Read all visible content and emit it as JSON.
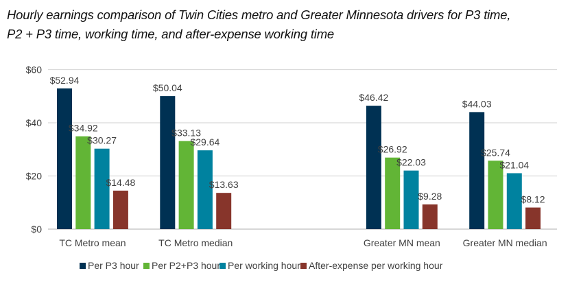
{
  "chart_data": {
    "type": "bar",
    "title_lines": [
      "Hourly earnings comparison of Twin Cities metro and Greater Minnesota drivers for P3 time,",
      "P2 + P3 time, working time, and after-expense working time"
    ],
    "xlabel": "",
    "ylabel": "",
    "ylim": [
      0,
      60
    ],
    "yticks": [
      0,
      20,
      40,
      60
    ],
    "ytick_labels": [
      "$0",
      "$20",
      "$40",
      "$60"
    ],
    "grid": true,
    "legend_position": "bottom",
    "categories": [
      "TC Metro mean",
      "TC Metro median",
      "Greater MN mean",
      "Greater MN median"
    ],
    "series": [
      {
        "name": "Per P3 hour",
        "color": "#003153",
        "values": [
          52.94,
          50.04,
          46.42,
          44.03
        ],
        "labels": [
          "$52.94",
          "$50.04",
          "$46.42",
          "$44.03"
        ]
      },
      {
        "name": "Per P2+P3 hour",
        "color": "#62b536",
        "values": [
          34.92,
          33.13,
          26.92,
          25.74
        ],
        "labels": [
          "$34.92",
          "$33.13",
          "$26.92",
          "$25.74"
        ]
      },
      {
        "name": "Per working hour",
        "color": "#00829f",
        "values": [
          30.27,
          29.64,
          22.03,
          21.04
        ],
        "labels": [
          "$30.27",
          "$29.64",
          "$22.03",
          "$21.04"
        ]
      },
      {
        "name": "After-expense per working hour",
        "color": "#87352b",
        "values": [
          14.48,
          13.63,
          9.28,
          8.12
        ],
        "labels": [
          "$14.48",
          "$13.63",
          "$9.28",
          "$8.12"
        ]
      }
    ]
  }
}
